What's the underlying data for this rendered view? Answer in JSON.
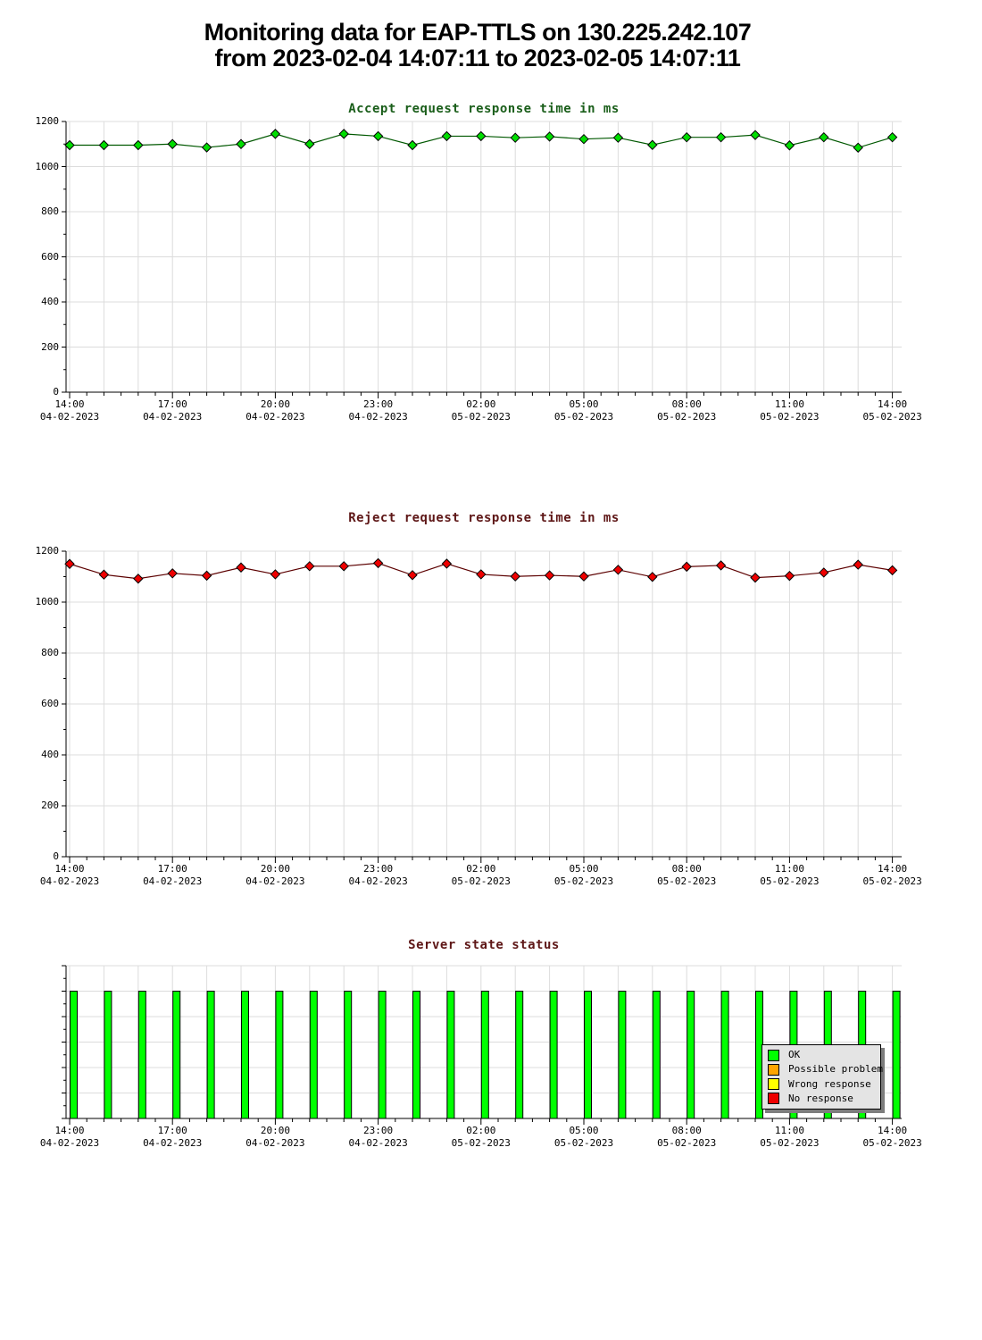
{
  "page_title": {
    "line1": "Monitoring data for EAP-TTLS on 130.225.242.107",
    "line2": "from 2023-02-04 14:07:11 to 2023-02-05 14:07:11"
  },
  "colors": {
    "grid": "#dcdcdc",
    "axis": "#000000",
    "background": "#ffffff",
    "legend_background": "#e4e4e4",
    "legend_shadow": "#7d7d7d"
  },
  "x_axis": {
    "interval_hours": 1,
    "minor_tick_minutes": 30,
    "major_tick_hours": 3,
    "tick_labels": [
      {
        "time": "14:00",
        "date": "04-02-2023"
      },
      {
        "time": "17:00",
        "date": "04-02-2023"
      },
      {
        "time": "20:00",
        "date": "04-02-2023"
      },
      {
        "time": "23:00",
        "date": "04-02-2023"
      },
      {
        "time": "02:00",
        "date": "05-02-2023"
      },
      {
        "time": "05:00",
        "date": "05-02-2023"
      },
      {
        "time": "08:00",
        "date": "05-02-2023"
      },
      {
        "time": "11:00",
        "date": "05-02-2023"
      },
      {
        "time": "14:00",
        "date": "05-02-2023"
      }
    ]
  },
  "y_axis_ms": {
    "tick_labels": [
      "1200",
      "1000",
      "800",
      "600",
      "400",
      "200",
      "0"
    ],
    "min": 0,
    "max": 1200
  },
  "chart_data": [
    {
      "type": "line",
      "title": "Accept request response time in ms",
      "title_color": "#1a5e1a",
      "line_color": "#005800",
      "marker_color": "#00dd00",
      "marker_outline": "#000000",
      "xlabel": "",
      "ylabel": "",
      "ylim": [
        0,
        1200
      ],
      "grid": true,
      "x_start": "14:00 04-02-2023",
      "x_end": "14:00 05-02-2023",
      "x_step_hours": 1,
      "values": [
        1095,
        1095,
        1095,
        1100,
        1085,
        1100,
        1145,
        1100,
        1145,
        1135,
        1095,
        1135,
        1135,
        1128,
        1133,
        1122,
        1128,
        1096,
        1130,
        1130,
        1140,
        1094,
        1130,
        1084,
        1130
      ]
    },
    {
      "type": "line",
      "title": "Reject request response time in ms",
      "title_color": "#5e1717",
      "line_color": "#5c0000",
      "marker_color": "#ee0000",
      "marker_outline": "#000000",
      "xlabel": "",
      "ylabel": "",
      "ylim": [
        0,
        1200
      ],
      "grid": true,
      "x_start": "14:00 04-02-2023",
      "x_end": "14:00 05-02-2023",
      "x_step_hours": 1,
      "values": [
        1150,
        1108,
        1092,
        1113,
        1104,
        1136,
        1109,
        1141,
        1141,
        1153,
        1106,
        1151,
        1109,
        1101,
        1105,
        1101,
        1127,
        1099,
        1139,
        1144,
        1096,
        1103,
        1116,
        1147,
        1125
      ]
    },
    {
      "type": "bar",
      "title": "Server state status",
      "title_color": "#5e1717",
      "bar_outline": "#000000",
      "xlabel": "",
      "ylabel": "",
      "grid": true,
      "x_start": "14:00 04-02-2023",
      "x_end": "14:00 05-02-2023",
      "x_step_hours": 1,
      "states": [
        "OK",
        "OK",
        "OK",
        "OK",
        "OK",
        "OK",
        "OK",
        "OK",
        "OK",
        "OK",
        "OK",
        "OK",
        "OK",
        "OK",
        "OK",
        "OK",
        "OK",
        "OK",
        "OK",
        "OK",
        "OK",
        "OK",
        "OK",
        "OK",
        "OK"
      ],
      "state_colors": {
        "OK": "#00ff00",
        "Possible problem": "#ffa500",
        "Wrong response": "#ffff00",
        "No response": "#ee0000"
      },
      "legend": {
        "items": [
          {
            "label": "OK",
            "color": "#00ff00"
          },
          {
            "label": "Possible problem",
            "color": "#ffa500"
          },
          {
            "label": "Wrong response",
            "color": "#ffff00"
          },
          {
            "label": "No response",
            "color": "#ee0000"
          }
        ]
      }
    }
  ]
}
